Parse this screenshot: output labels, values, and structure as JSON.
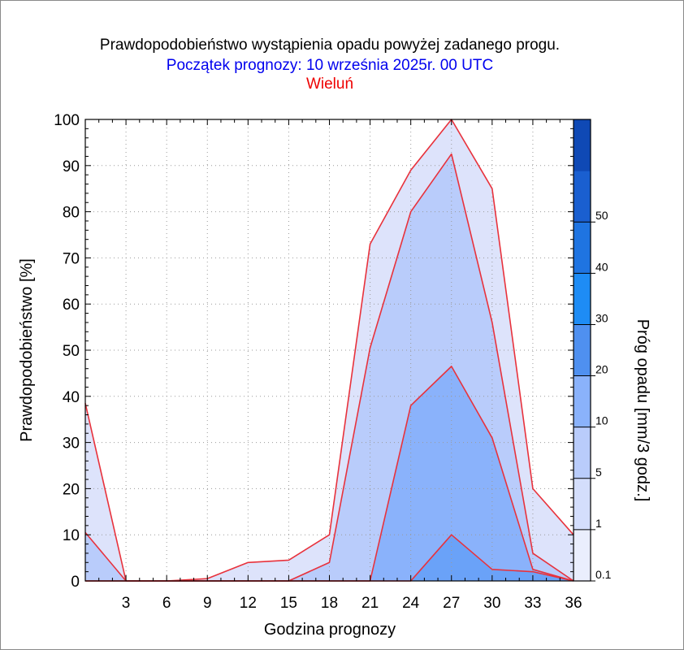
{
  "chart_data": {
    "type": "area",
    "title": "Prawdopodobieństwo wystąpienia opadu powyżej zadanego progu.",
    "subtitle": "Początek prognozy: 10 września 2025r. 00 UTC",
    "location": "Wieluń",
    "xlabel": "Godzina prognozy",
    "ylabel": "Prawdopodobieństwo [%]",
    "colorbar_label": "Próg opadu [mm/3 godz.]",
    "x": [
      0,
      3,
      6,
      9,
      12,
      15,
      18,
      21,
      24,
      27,
      30,
      33,
      36
    ],
    "x_ticks": [
      "3",
      "6",
      "9",
      "12",
      "15",
      "18",
      "21",
      "24",
      "27",
      "30",
      "33",
      "36"
    ],
    "y_ticks": [
      "0",
      "10",
      "20",
      "30",
      "40",
      "50",
      "60",
      "70",
      "80",
      "90",
      "100"
    ],
    "xlim": [
      0,
      36
    ],
    "ylim": [
      0,
      100
    ],
    "series": [
      {
        "threshold": "0.1",
        "color": "#dde3fb",
        "values": [
          38.5,
          0,
          0,
          0.5,
          4,
          4.5,
          10,
          73,
          89,
          100,
          85,
          20,
          10
        ]
      },
      {
        "threshold": "1",
        "color": "#b9ccfb",
        "values": [
          10.5,
          0,
          0,
          0,
          0,
          0,
          4,
          50.5,
          80,
          92.5,
          56,
          6,
          0
        ]
      },
      {
        "threshold": "5",
        "color": "#8ab2fb",
        "values": [
          0,
          0,
          0,
          0,
          0,
          0,
          0,
          0,
          38,
          46.5,
          31,
          2.5,
          0
        ]
      },
      {
        "threshold": "10",
        "color": "#6aa2f8",
        "values": [
          0,
          0,
          0,
          0,
          0,
          0,
          0,
          0,
          0,
          10,
          2.5,
          2,
          0
        ]
      }
    ],
    "colorbar": {
      "ticks": [
        "0.1",
        "1",
        "5",
        "10",
        "20",
        "30",
        "40",
        "50"
      ],
      "colors": [
        "#eaeefd",
        "#d4defc",
        "#b9ccfb",
        "#8ab2fb",
        "#4f90f0",
        "#1e8cf5",
        "#1f74e1",
        "#1a5fd0",
        "#0f49b5"
      ]
    },
    "grid": true,
    "line_color": "#e8323c"
  }
}
